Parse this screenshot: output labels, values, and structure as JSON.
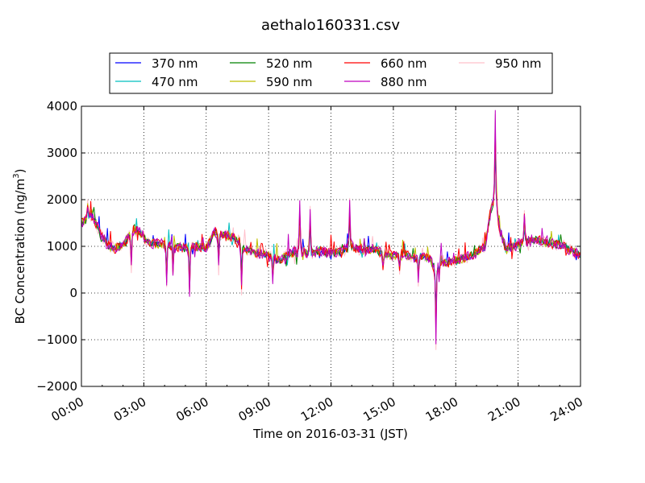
{
  "chart_data": {
    "type": "line",
    "title": "aethalo160331.csv",
    "xlabel": "Time on 2016-03-31 (JST)",
    "ylabel": "BC Concentration (ng/m",
    "ylabel_sup": "3",
    "ylabel_suffix": ")",
    "x_unit": "hours",
    "xlim": [
      0,
      24
    ],
    "ylim": [
      -2000,
      4000
    ],
    "x_ticks": [
      0,
      3,
      6,
      9,
      12,
      15,
      18,
      21,
      24
    ],
    "x_tick_labels": [
      "00:00",
      "03:00",
      "06:00",
      "09:00",
      "12:00",
      "15:00",
      "18:00",
      "21:00",
      "24:00"
    ],
    "y_ticks": [
      -2000,
      -1000,
      0,
      1000,
      2000,
      3000,
      4000
    ],
    "y_tick_labels": [
      "−2000",
      "−1000",
      "0",
      "1000",
      "2000",
      "3000",
      "4000"
    ],
    "grid": true,
    "legend_position": "top-center",
    "series": [
      {
        "name": "370 nm",
        "color": "#0000ff"
      },
      {
        "name": "470 nm",
        "color": "#00bfbf"
      },
      {
        "name": "520 nm",
        "color": "#008000"
      },
      {
        "name": "590 nm",
        "color": "#bfbf00"
      },
      {
        "name": "660 nm",
        "color": "#ff0000"
      },
      {
        "name": "880 nm",
        "color": "#bf00bf"
      },
      {
        "name": "950 nm",
        "color": "#ffc0cb"
      }
    ],
    "base_profile": [
      [
        0.0,
        1500
      ],
      [
        0.3,
        1600
      ],
      [
        0.5,
        1700
      ],
      [
        0.8,
        1400
      ],
      [
        1.0,
        1200
      ],
      [
        1.3,
        1000
      ],
      [
        1.6,
        950
      ],
      [
        2.0,
        1050
      ],
      [
        2.5,
        1350
      ],
      [
        2.8,
        1300
      ],
      [
        3.2,
        1100
      ],
      [
        3.6,
        1050
      ],
      [
        4.0,
        1050
      ],
      [
        4.5,
        1000
      ],
      [
        5.0,
        950
      ],
      [
        5.5,
        1000
      ],
      [
        6.0,
        950
      ],
      [
        6.4,
        1300
      ],
      [
        6.8,
        1250
      ],
      [
        7.2,
        1200
      ],
      [
        7.6,
        1100
      ],
      [
        8.0,
        900
      ],
      [
        8.5,
        850
      ],
      [
        9.0,
        800
      ],
      [
        9.5,
        700
      ],
      [
        10.0,
        850
      ],
      [
        10.5,
        900
      ],
      [
        11.0,
        850
      ],
      [
        11.5,
        900
      ],
      [
        12.0,
        850
      ],
      [
        12.5,
        900
      ],
      [
        13.0,
        1000
      ],
      [
        13.5,
        900
      ],
      [
        14.0,
        950
      ],
      [
        14.5,
        850
      ],
      [
        15.0,
        800
      ],
      [
        15.5,
        850
      ],
      [
        16.0,
        750
      ],
      [
        16.5,
        800
      ],
      [
        16.8,
        700
      ],
      [
        17.0,
        500
      ],
      [
        17.3,
        700
      ],
      [
        17.6,
        650
      ],
      [
        18.0,
        700
      ],
      [
        18.5,
        750
      ],
      [
        19.0,
        850
      ],
      [
        19.4,
        1000
      ],
      [
        19.7,
        1800
      ],
      [
        19.9,
        2100
      ],
      [
        20.1,
        1400
      ],
      [
        20.4,
        950
      ],
      [
        20.8,
        1000
      ],
      [
        21.3,
        1100
      ],
      [
        21.8,
        1150
      ],
      [
        22.2,
        1100
      ],
      [
        22.7,
        1050
      ],
      [
        23.2,
        1000
      ],
      [
        23.6,
        900
      ],
      [
        24.0,
        800
      ]
    ],
    "spikes": [
      [
        0.3,
        1950
      ],
      [
        2.4,
        500
      ],
      [
        4.1,
        150
      ],
      [
        4.4,
        300
      ],
      [
        5.2,
        -50
      ],
      [
        6.6,
        500
      ],
      [
        7.7,
        50
      ],
      [
        9.2,
        300
      ],
      [
        10.5,
        1950
      ],
      [
        11.0,
        1800
      ],
      [
        12.9,
        1950
      ],
      [
        14.5,
        500
      ],
      [
        15.3,
        500
      ],
      [
        16.2,
        250
      ],
      [
        17.05,
        -1100
      ],
      [
        17.2,
        300
      ],
      [
        19.9,
        3900
      ],
      [
        21.3,
        1700
      ]
    ]
  }
}
